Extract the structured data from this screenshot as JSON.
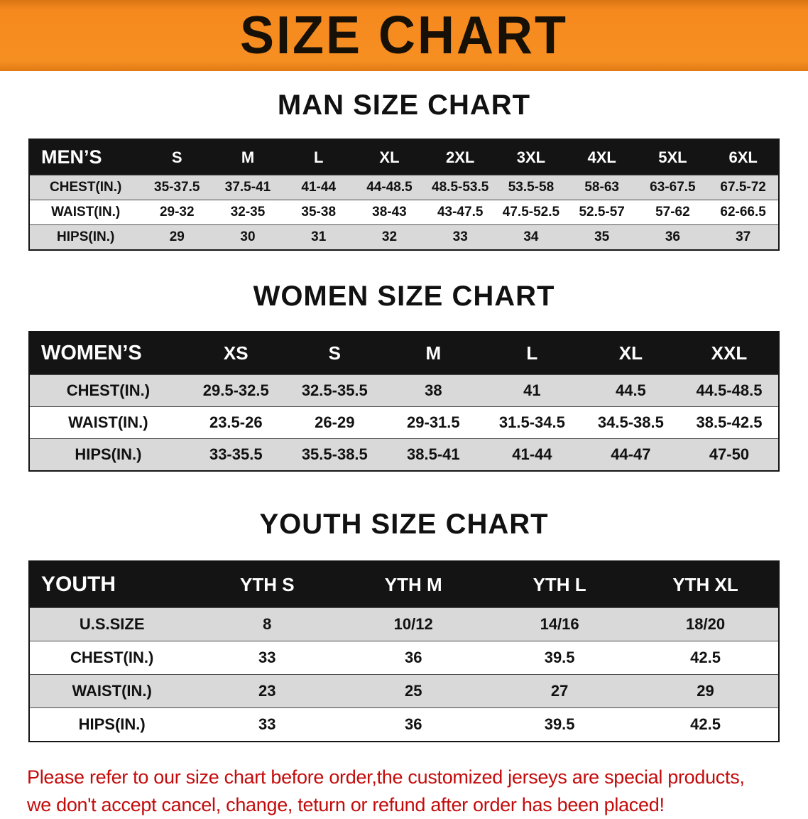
{
  "banner": {
    "title": "SIZE CHART",
    "bg_color": "#f6891e",
    "text_color": "#161006"
  },
  "colors": {
    "table_header_bg": "#141414",
    "table_header_text": "#ffffff",
    "row_stripe": "#d9d9d9",
    "disclaimer_text": "#c40b0b"
  },
  "sections": [
    {
      "title": "MAN SIZE CHART",
      "table": {
        "header": [
          "MEN’S",
          "S",
          "M",
          "L",
          "XL",
          "2XL",
          "3XL",
          "4XL",
          "5XL",
          "6XL"
        ],
        "rows": [
          [
            "CHEST(IN.)",
            "35-37.5",
            "37.5-41",
            "41-44",
            "44-48.5",
            "48.5-53.5",
            "53.5-58",
            "58-63",
            "63-67.5",
            "67.5-72"
          ],
          [
            "WAIST(IN.)",
            "29-32",
            "32-35",
            "35-38",
            "38-43",
            "43-47.5",
            "47.5-52.5",
            "52.5-57",
            "57-62",
            "62-66.5"
          ],
          [
            "HIPS(IN.)",
            "29",
            "30",
            "31",
            "32",
            "33",
            "34",
            "35",
            "36",
            "37"
          ]
        ]
      }
    },
    {
      "title": "WOMEN SIZE CHART",
      "table": {
        "header": [
          "WOMEN’S",
          "XS",
          "S",
          "M",
          "L",
          "XL",
          "XXL"
        ],
        "rows": [
          [
            "CHEST(IN.)",
            "29.5-32.5",
            "32.5-35.5",
            "38",
            "41",
            "44.5",
            "44.5-48.5"
          ],
          [
            "WAIST(IN.)",
            "23.5-26",
            "26-29",
            "29-31.5",
            "31.5-34.5",
            "34.5-38.5",
            "38.5-42.5"
          ],
          [
            "HIPS(IN.)",
            "33-35.5",
            "35.5-38.5",
            "38.5-41",
            "41-44",
            "44-47",
            "47-50"
          ]
        ]
      }
    },
    {
      "title": "YOUTH SIZE CHART",
      "table": {
        "header": [
          "YOUTH",
          "YTH S",
          "YTH M",
          "YTH L",
          "YTH XL"
        ],
        "rows": [
          [
            "U.S.SIZE",
            "8",
            "10/12",
            "14/16",
            "18/20"
          ],
          [
            "CHEST(IN.)",
            "33",
            "36",
            "39.5",
            "42.5"
          ],
          [
            "WAIST(IN.)",
            "23",
            "25",
            "27",
            "29"
          ],
          [
            "HIPS(IN.)",
            "33",
            "36",
            "39.5",
            "42.5"
          ]
        ]
      }
    }
  ],
  "disclaimer": {
    "line1": "Please refer to our size chart before order,the customized jerseys are special products,",
    "line2": "we don't accept cancel, change, teturn or refund after order has been placed!"
  }
}
